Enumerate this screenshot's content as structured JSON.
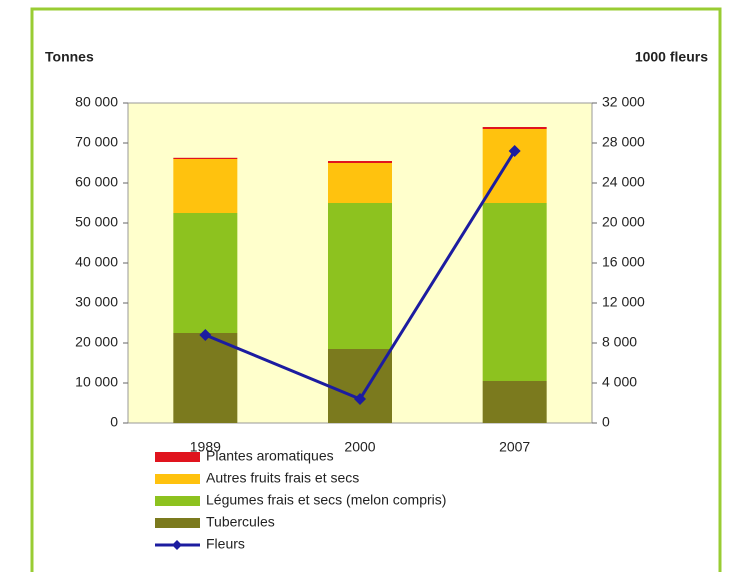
{
  "chart_data": {
    "type": "bar",
    "stacked": true,
    "y_axis_label": "Tonnes",
    "y2_axis_label": "1000 fleurs",
    "categories": [
      "1989",
      "2000",
      "2007"
    ],
    "series": [
      {
        "name": "Tubercules",
        "color": "#7b7a1e",
        "values": [
          22500,
          18500,
          10500
        ]
      },
      {
        "name": "Légumes frais et secs (melon compris)",
        "color": "#8dc21f",
        "values": [
          30000,
          36500,
          44500
        ]
      },
      {
        "name": "Autres fruits frais et secs",
        "color": "#ffc20e",
        "values": [
          13500,
          10000,
          18500
        ]
      },
      {
        "name": "Plantes aromatiques",
        "color": "#e0141e",
        "values": [
          300,
          500,
          500
        ]
      },
      {
        "name": "Fleurs",
        "color": "#1c1ca0",
        "type": "line",
        "axis": "y2",
        "values": [
          8800,
          2400,
          27200
        ]
      }
    ],
    "ylim": [
      0,
      80000
    ],
    "yticks": [
      0,
      {
        "value": 10000,
        "label": "10 000"
      },
      {
        "value": 20000,
        "label": "20 000"
      },
      {
        "value": 30000,
        "label": "30 000"
      },
      {
        "value": 40000,
        "label": "40 000"
      },
      {
        "value": 50000,
        "label": "50 000"
      },
      {
        "value": 60000,
        "label": "60 000"
      },
      {
        "value": 70000,
        "label": "70 000"
      },
      {
        "value": 80000,
        "label": "80 000"
      }
    ],
    "y2lim": [
      0,
      32000
    ],
    "y2ticks": [
      0,
      {
        "value": 4000,
        "label": "4 000"
      },
      {
        "value": 8000,
        "label": "8 000"
      },
      {
        "value": 12000,
        "label": "12 000"
      },
      {
        "value": 16000,
        "label": "16 000"
      },
      {
        "value": 20000,
        "label": "20 000"
      },
      {
        "value": 24000,
        "label": "24 000"
      },
      {
        "value": 28000,
        "label": "28 000"
      },
      {
        "value": 32000,
        "label": "32 000"
      }
    ],
    "grid": false,
    "legend_position": "bottom"
  }
}
